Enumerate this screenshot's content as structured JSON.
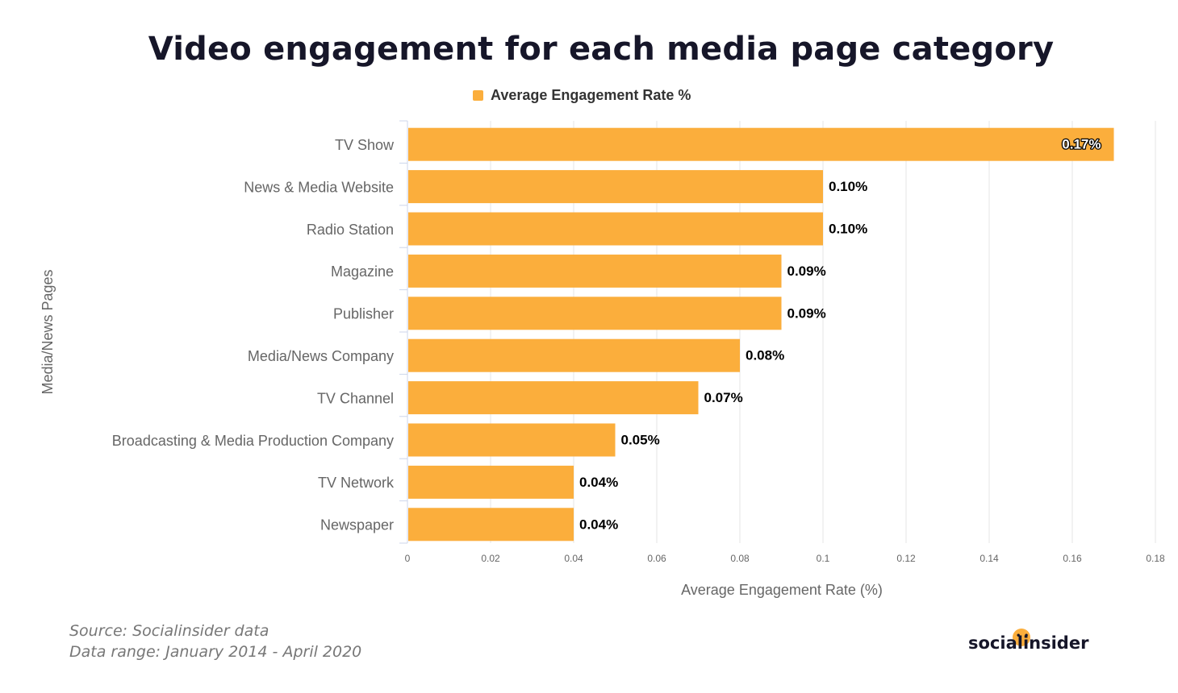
{
  "title": "Video engagement for each media page category",
  "legend": {
    "label": "Average Engagement Rate %",
    "color": "#FBAE3C"
  },
  "chart_data": {
    "type": "bar",
    "orientation": "horizontal",
    "categories": [
      "TV Show",
      "News & Media Website",
      "Radio Station",
      "Magazine",
      "Publisher",
      "Media/News Company",
      "TV Channel",
      "Broadcasting & Media Production Company",
      "TV Network",
      "Newspaper"
    ],
    "series": [
      {
        "name": "Average Engagement Rate %",
        "values": [
          0.17,
          0.1,
          0.1,
          0.09,
          0.09,
          0.08,
          0.07,
          0.05,
          0.04,
          0.04
        ],
        "labels": [
          "0.17%",
          "0.10%",
          "0.10%",
          "0.09%",
          "0.09%",
          "0.08%",
          "0.07%",
          "0.05%",
          "0.04%",
          "0.04%"
        ]
      }
    ],
    "xlabel": "Average Engagement Rate (%)",
    "ylabel": "Media/News Pages",
    "xlim": [
      0,
      0.18
    ],
    "xticks": [
      0,
      0.02,
      0.04,
      0.06,
      0.08,
      0.1,
      0.12,
      0.14,
      0.16,
      0.18
    ],
    "xtick_labels": [
      "0",
      "0.02",
      "0.04",
      "0.06",
      "0.08",
      "0.1",
      "0.12",
      "0.14",
      "0.16",
      "0.18"
    ],
    "grid": true,
    "legend_position": "top",
    "bar_color": "#FBAE3C"
  },
  "footer": {
    "source": "Source: Socialinsider data",
    "range": "Data range: January 2014 - April 2020"
  },
  "logo": {
    "text": "socialinsider",
    "face": "• •",
    "accent_color": "#FBAE3C"
  }
}
